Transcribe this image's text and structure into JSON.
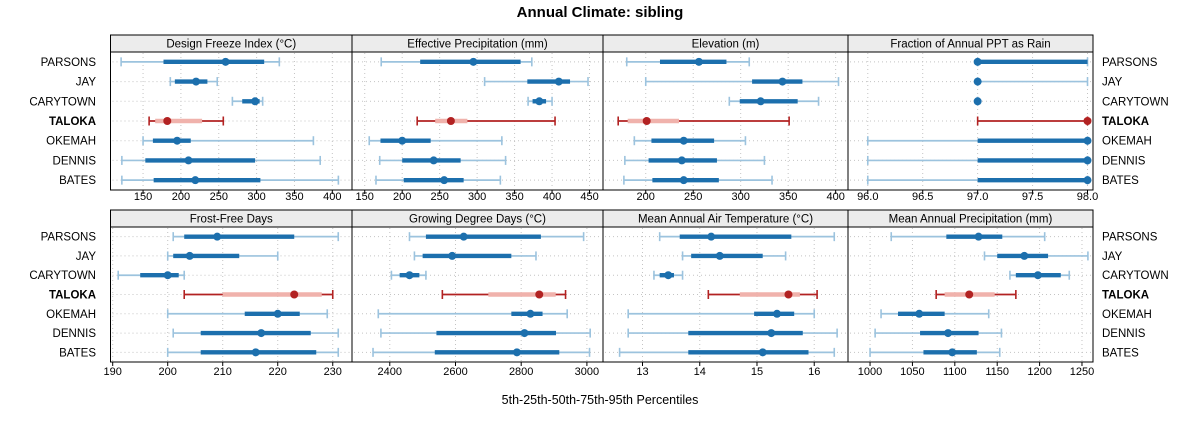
{
  "title": "Annual Climate: sibling",
  "caption": "5th-25th-50th-75th-95th Percentiles",
  "colors": {
    "blue": "#1c6fad",
    "blue_light": "#9cc3de",
    "red": "#b22222",
    "red_light": "#f0b2ac",
    "grid": "#c4c4c4",
    "strip_bg": "#ececec",
    "border": "#000000",
    "text": "#000000"
  },
  "chart_data": {
    "type": "trellis-percentile-dotplot",
    "percentiles": [
      "5th",
      "25th",
      "50th",
      "75th",
      "95th"
    ],
    "stations": [
      "PARSONS",
      "JAY",
      "CARYTOWN",
      "TALOKA",
      "OKEMAH",
      "DENNIS",
      "BATES"
    ],
    "highlighted_station": "TALOKA",
    "grid": "dotted",
    "panels": [
      {
        "title": "Design Freeze Index (°C)",
        "xlim": [
          107,
          426
        ],
        "ticks": [
          150,
          200,
          250,
          300,
          350,
          400
        ],
        "tick_labels": [
          "150",
          "200",
          "250",
          "300",
          "350",
          "400"
        ],
        "values": [
          [
            121,
            177,
            259,
            310,
            330
          ],
          [
            186,
            192,
            220,
            235,
            248
          ],
          [
            268,
            281,
            298,
            304,
            308
          ],
          [
            158,
            166,
            182,
            228,
            256
          ],
          [
            150,
            163,
            195,
            213,
            375
          ],
          [
            122,
            153,
            210,
            298,
            384
          ],
          [
            122,
            164,
            219,
            305,
            408
          ]
        ]
      },
      {
        "title": "Effective Precipitation (mm)",
        "xlim": [
          133,
          468
        ],
        "ticks": [
          150,
          200,
          250,
          300,
          350,
          400,
          450
        ],
        "tick_labels": [
          "150",
          "200",
          "250",
          "300",
          "350",
          "400",
          "450"
        ],
        "values": [
          [
            172,
            224,
            295,
            358,
            373
          ],
          [
            310,
            367,
            409,
            424,
            448
          ],
          [
            368,
            374,
            383,
            392,
            400
          ],
          [
            220,
            244,
            265,
            287,
            404
          ],
          [
            156,
            171,
            200,
            238,
            333
          ],
          [
            170,
            200,
            242,
            278,
            338
          ],
          [
            165,
            202,
            256,
            282,
            331
          ]
        ]
      },
      {
        "title": "Elevation (m)",
        "xlim": [
          155,
          413
        ],
        "ticks": [
          200,
          250,
          300,
          350,
          400
        ],
        "tick_labels": [
          "200",
          "250",
          "300",
          "350",
          "400"
        ],
        "values": [
          [
            180,
            215,
            256,
            285,
            309
          ],
          [
            200,
            312,
            344,
            365,
            403
          ],
          [
            288,
            299,
            321,
            360,
            382
          ],
          [
            171,
            181,
            201,
            235,
            351
          ],
          [
            188,
            206,
            240,
            272,
            305
          ],
          [
            178,
            203,
            238,
            275,
            325
          ],
          [
            177,
            207,
            240,
            277,
            333
          ]
        ]
      },
      {
        "title": "Fraction of Annual PPT as Rain",
        "xlim": [
          95.82,
          98.05
        ],
        "ticks": [
          96,
          96.5,
          97,
          97.5,
          98
        ],
        "tick_labels": [
          "96.0",
          "96.5",
          "97.0",
          "97.5",
          "98.0"
        ],
        "values": [
          [
            97,
            97,
            97,
            98,
            98
          ],
          [
            97,
            97,
            97,
            97,
            98
          ],
          [
            97,
            97,
            97,
            97,
            97
          ],
          [
            97,
            98,
            98,
            98,
            98
          ],
          [
            96,
            97,
            98,
            98,
            98
          ],
          [
            96,
            97,
            98,
            98,
            98
          ],
          [
            96,
            97,
            98,
            98,
            98
          ]
        ]
      },
      {
        "title": "Frost-Free Days",
        "xlim": [
          189.6,
          233.5
        ],
        "ticks": [
          190,
          200,
          210,
          220,
          230
        ],
        "tick_labels": [
          "190",
          "200",
          "210",
          "220",
          "230"
        ],
        "values": [
          [
            201,
            203,
            209,
            223,
            231
          ],
          [
            200,
            201,
            204,
            213,
            220
          ],
          [
            191,
            195,
            200,
            202,
            203
          ],
          [
            203,
            210,
            223,
            228,
            230
          ],
          [
            200,
            214,
            220,
            224,
            229
          ],
          [
            201,
            206,
            217,
            226,
            231
          ],
          [
            200,
            206,
            216,
            227,
            231
          ]
        ]
      },
      {
        "title": "Growing Degree Days (°C)",
        "xlim": [
          2285,
          3049
        ],
        "ticks": [
          2400,
          2600,
          2800,
          3000
        ],
        "tick_labels": [
          "2400",
          "2600",
          "2800",
          "3000"
        ],
        "values": [
          [
            2460,
            2510,
            2625,
            2860,
            2990
          ],
          [
            2475,
            2500,
            2590,
            2770,
            2845
          ],
          [
            2405,
            2430,
            2460,
            2490,
            2510
          ],
          [
            2560,
            2700,
            2855,
            2905,
            2935
          ],
          [
            2365,
            2770,
            2828,
            2865,
            2940
          ],
          [
            2373,
            2542,
            2810,
            2906,
            3010
          ],
          [
            2349,
            2537,
            2787,
            2916,
            3008
          ]
        ]
      },
      {
        "title": "Mean Annual Air Temperature (°C)",
        "xlim": [
          12.31,
          16.59
        ],
        "ticks": [
          13,
          14,
          15,
          16
        ],
        "tick_labels": [
          "13",
          "14",
          "15",
          "16"
        ],
        "values": [
          [
            13.3,
            13.65,
            14.2,
            15.6,
            16.35
          ],
          [
            13.7,
            13.85,
            14.35,
            15.1,
            15.5
          ],
          [
            13.2,
            13.3,
            13.45,
            13.55,
            13.7
          ],
          [
            14.15,
            14.7,
            15.55,
            15.75,
            16.05
          ],
          [
            12.75,
            14.95,
            15.35,
            15.65,
            16.0
          ],
          [
            12.75,
            13.8,
            15.25,
            15.8,
            16.4
          ],
          [
            12.6,
            13.8,
            15.1,
            15.9,
            16.35
          ]
        ]
      },
      {
        "title": "Mean Annual Precipitation (mm)",
        "xlim": [
          974,
          1263
        ],
        "ticks": [
          1000,
          1050,
          1100,
          1150,
          1200,
          1250
        ],
        "tick_labels": [
          "1000",
          "1050",
          "1100",
          "1150",
          "1200",
          "1250"
        ],
        "values": [
          [
            1025,
            1090,
            1128,
            1156,
            1206
          ],
          [
            1135,
            1150,
            1182,
            1210,
            1257
          ],
          [
            1165,
            1172,
            1198,
            1225,
            1235
          ],
          [
            1078,
            1088,
            1117,
            1147,
            1172
          ],
          [
            1013,
            1033,
            1058,
            1088,
            1140
          ],
          [
            1006,
            1059,
            1092,
            1128,
            1155
          ],
          [
            1000,
            1063,
            1097,
            1126,
            1153
          ]
        ]
      }
    ]
  }
}
